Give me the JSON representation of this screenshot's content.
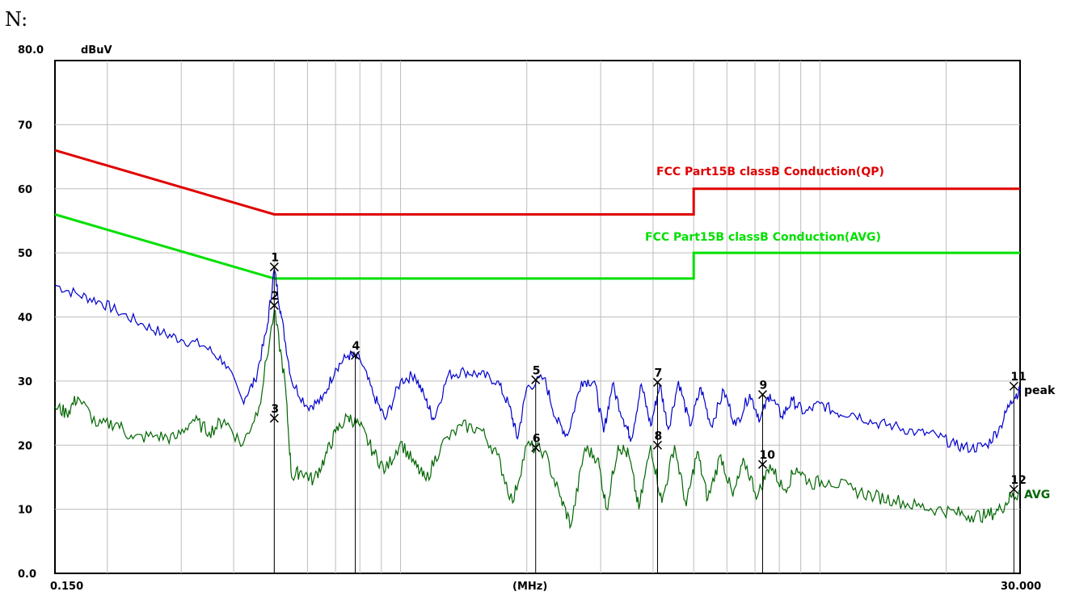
{
  "page": {
    "heading": "N:"
  },
  "chart_data": {
    "type": "line",
    "x_scale": "log",
    "xlim": [
      0.15,
      30.0
    ],
    "ylim": [
      0,
      80
    ],
    "grid": true,
    "ylabel_unit": "dBuV",
    "xlabel": "(MHz)",
    "x_tick_labels": {
      "start": "0.150",
      "end": "30.000"
    },
    "y_ticks": [
      {
        "value": 80,
        "label": "80.0"
      },
      {
        "value": 70,
        "label": "70"
      },
      {
        "value": 60,
        "label": "60"
      },
      {
        "value": 50,
        "label": "50"
      },
      {
        "value": 40,
        "label": "40"
      },
      {
        "value": 30,
        "label": "30"
      },
      {
        "value": 20,
        "label": "20"
      },
      {
        "value": 10,
        "label": "10"
      },
      {
        "value": 0,
        "label": "0.0"
      }
    ],
    "limits": [
      {
        "name": "FCC  Part15B classB Conduction(QP)",
        "color": "#e00000",
        "points": [
          [
            0.15,
            66
          ],
          [
            0.5,
            56
          ],
          [
            5.0,
            56
          ],
          [
            5.0,
            60
          ],
          [
            30.0,
            60
          ]
        ]
      },
      {
        "name": "FCC  Part15B classB Conduction(AVG)",
        "color": "#00e000",
        "points": [
          [
            0.15,
            56
          ],
          [
            0.5,
            46
          ],
          [
            5.0,
            46
          ],
          [
            5.0,
            50
          ],
          [
            30.0,
            50
          ]
        ]
      }
    ],
    "traces": [
      {
        "name": "peak",
        "color": "#0000cc",
        "label_color": "#000000",
        "points": [
          [
            0.15,
            45
          ],
          [
            0.17,
            43.5
          ],
          [
            0.19,
            42.5
          ],
          [
            0.21,
            41
          ],
          [
            0.24,
            39
          ],
          [
            0.27,
            37.5
          ],
          [
            0.3,
            36.5
          ],
          [
            0.34,
            35.5
          ],
          [
            0.38,
            33
          ],
          [
            0.42,
            27
          ],
          [
            0.45,
            30
          ],
          [
            0.48,
            38
          ],
          [
            0.5,
            47.5
          ],
          [
            0.52,
            40
          ],
          [
            0.55,
            30
          ],
          [
            0.6,
            26
          ],
          [
            0.65,
            27
          ],
          [
            0.7,
            32
          ],
          [
            0.75,
            34
          ],
          [
            0.8,
            33.5
          ],
          [
            0.86,
            28
          ],
          [
            0.92,
            24
          ],
          [
            1.0,
            30
          ],
          [
            1.08,
            31
          ],
          [
            1.15,
            27
          ],
          [
            1.2,
            24
          ],
          [
            1.3,
            31
          ],
          [
            1.42,
            31.5
          ],
          [
            1.55,
            31
          ],
          [
            1.7,
            30
          ],
          [
            1.82,
            26
          ],
          [
            1.9,
            21
          ],
          [
            2.0,
            29
          ],
          [
            2.2,
            30.5
          ],
          [
            2.35,
            24
          ],
          [
            2.5,
            21.5
          ],
          [
            2.7,
            30
          ],
          [
            2.9,
            30
          ],
          [
            3.05,
            22
          ],
          [
            3.2,
            29.5
          ],
          [
            3.4,
            24
          ],
          [
            3.55,
            21
          ],
          [
            3.75,
            29.5
          ],
          [
            3.95,
            23
          ],
          [
            4.15,
            29.5
          ],
          [
            4.35,
            22.5
          ],
          [
            4.6,
            30
          ],
          [
            4.9,
            23
          ],
          [
            5.2,
            29
          ],
          [
            5.5,
            23
          ],
          [
            5.9,
            28.5
          ],
          [
            6.3,
            23
          ],
          [
            6.8,
            28
          ],
          [
            7.2,
            24
          ],
          [
            7.6,
            28
          ],
          [
            8.1,
            24.5
          ],
          [
            8.6,
            27
          ],
          [
            9.2,
            25
          ],
          [
            10,
            26.5
          ],
          [
            11,
            25
          ],
          [
            12,
            25
          ],
          [
            13.5,
            23.5
          ],
          [
            15,
            23
          ],
          [
            17,
            22
          ],
          [
            19,
            21.5
          ],
          [
            21,
            20
          ],
          [
            23,
            19.5
          ],
          [
            25,
            20
          ],
          [
            27,
            23
          ],
          [
            28.5,
            27
          ],
          [
            30,
            28.5
          ]
        ]
      },
      {
        "name": "AVG",
        "color": "#006600",
        "label_color": "#006600",
        "points": [
          [
            0.15,
            26
          ],
          [
            0.16,
            25
          ],
          [
            0.17,
            27.5
          ],
          [
            0.19,
            23
          ],
          [
            0.21,
            23.5
          ],
          [
            0.23,
            21
          ],
          [
            0.26,
            21.5
          ],
          [
            0.29,
            21
          ],
          [
            0.32,
            24
          ],
          [
            0.35,
            22
          ],
          [
            0.38,
            24
          ],
          [
            0.42,
            20
          ],
          [
            0.46,
            26
          ],
          [
            0.5,
            41
          ],
          [
            0.53,
            30
          ],
          [
            0.55,
            15
          ],
          [
            0.58,
            16
          ],
          [
            0.62,
            14.5
          ],
          [
            0.66,
            18
          ],
          [
            0.7,
            22
          ],
          [
            0.75,
            24.5
          ],
          [
            0.8,
            23
          ],
          [
            0.86,
            19
          ],
          [
            0.92,
            16
          ],
          [
            1.0,
            20.5
          ],
          [
            1.08,
            17
          ],
          [
            1.15,
            14.5
          ],
          [
            1.25,
            20
          ],
          [
            1.4,
            23
          ],
          [
            1.55,
            22.5
          ],
          [
            1.7,
            18.5
          ],
          [
            1.85,
            11
          ],
          [
            2.0,
            20
          ],
          [
            2.2,
            19
          ],
          [
            2.4,
            12
          ],
          [
            2.55,
            7.5
          ],
          [
            2.75,
            19.5
          ],
          [
            2.95,
            18
          ],
          [
            3.1,
            10
          ],
          [
            3.3,
            20
          ],
          [
            3.5,
            18.5
          ],
          [
            3.7,
            10
          ],
          [
            3.95,
            20
          ],
          [
            4.2,
            11
          ],
          [
            4.5,
            20
          ],
          [
            4.8,
            10.5
          ],
          [
            5.1,
            19
          ],
          [
            5.4,
            11.5
          ],
          [
            5.8,
            18.5
          ],
          [
            6.2,
            12
          ],
          [
            6.6,
            17.5
          ],
          [
            7.1,
            12
          ],
          [
            7.6,
            17
          ],
          [
            8.2,
            13
          ],
          [
            8.8,
            16.5
          ],
          [
            9.5,
            14
          ],
          [
            10.5,
            14.5
          ],
          [
            12,
            13
          ],
          [
            13.5,
            12
          ],
          [
            15,
            11.5
          ],
          [
            17,
            10.5
          ],
          [
            19,
            10
          ],
          [
            21,
            9.5
          ],
          [
            23,
            9
          ],
          [
            25,
            9
          ],
          [
            27,
            10
          ],
          [
            28.5,
            12
          ],
          [
            30,
            12.5
          ]
        ]
      }
    ],
    "markers": [
      {
        "label": "1",
        "freq": 0.5,
        "level": 47.8
      },
      {
        "label": "2",
        "freq": 0.5,
        "level": 41.8
      },
      {
        "label": "3",
        "freq": 0.5,
        "level": 24.2
      },
      {
        "label": "4",
        "freq": 0.78,
        "level": 34.0
      },
      {
        "label": "5",
        "freq": 2.1,
        "level": 30.2
      },
      {
        "label": "6",
        "freq": 2.1,
        "level": 19.6
      },
      {
        "label": "7",
        "freq": 4.1,
        "level": 29.8
      },
      {
        "label": "8",
        "freq": 4.1,
        "level": 20.0
      },
      {
        "label": "9",
        "freq": 7.3,
        "level": 27.9
      },
      {
        "label": "10",
        "freq": 7.3,
        "level": 17.0
      },
      {
        "label": "11",
        "freq": 29.0,
        "level": 29.2
      },
      {
        "label": "12",
        "freq": 29.0,
        "level": 13.1
      }
    ]
  }
}
